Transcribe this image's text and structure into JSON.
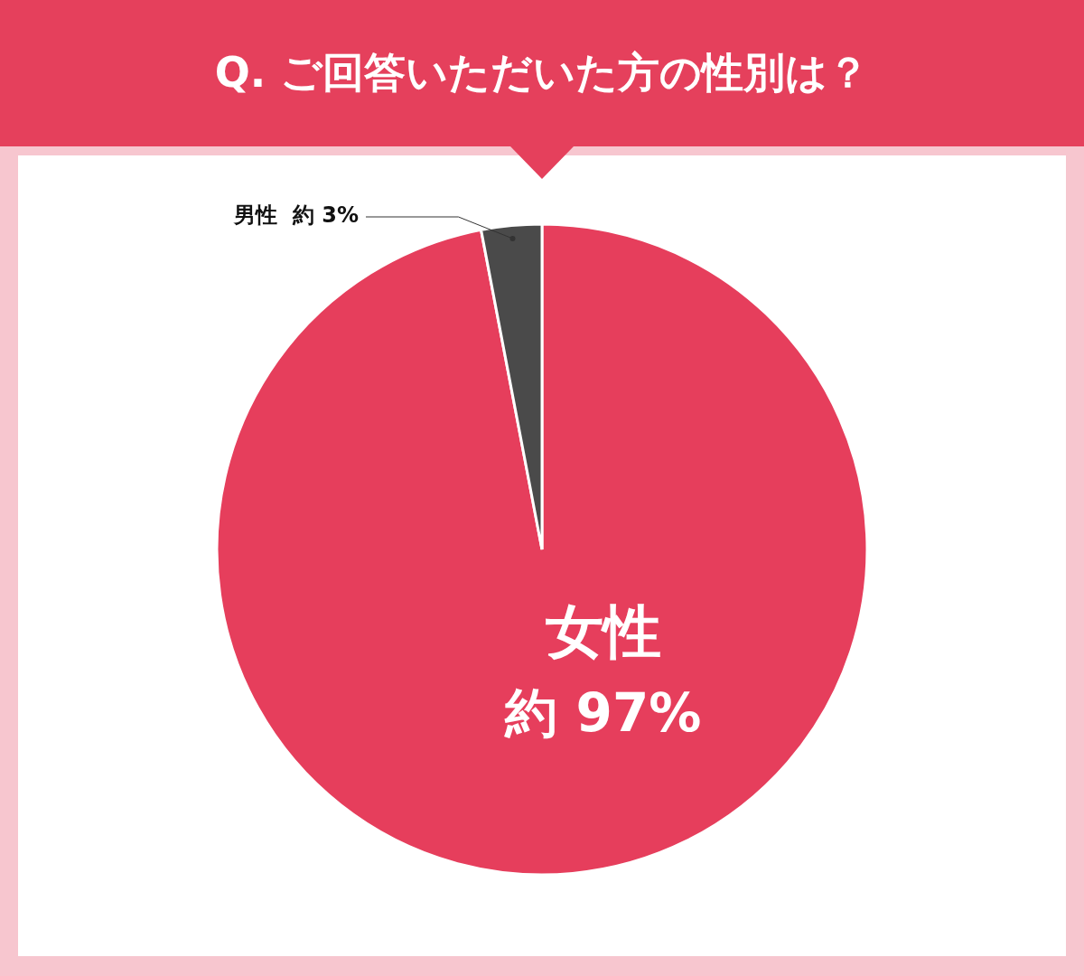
{
  "chart_data": {
    "type": "pie",
    "title": "Q. ご回答いただいた方の性別は？",
    "categories": [
      "女性",
      "男性"
    ],
    "values": [
      97,
      3
    ],
    "value_labels": [
      "約 97%",
      "約 3%"
    ],
    "colors": [
      "#e63e5c",
      "#4a4a4a"
    ],
    "legend": false
  }
}
